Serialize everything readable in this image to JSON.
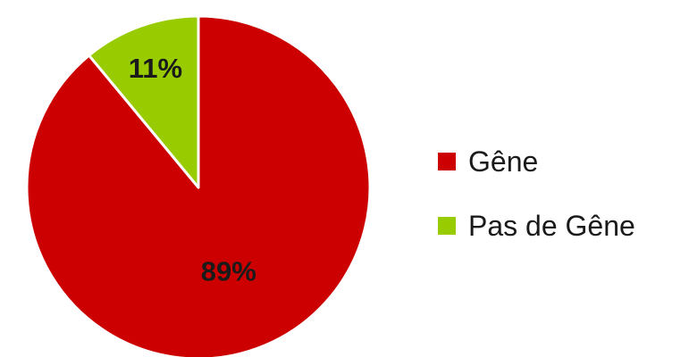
{
  "chart_data": {
    "type": "pie",
    "title": "",
    "slices": [
      {
        "name": "Gêne",
        "value": 89,
        "label": "89%",
        "color": "#cc0000"
      },
      {
        "name": "Pas de Gêne",
        "value": 11,
        "label": "11%",
        "color": "#99cc00"
      }
    ],
    "legend_position": "right",
    "start_direction": "top",
    "direction": "clockwise"
  }
}
